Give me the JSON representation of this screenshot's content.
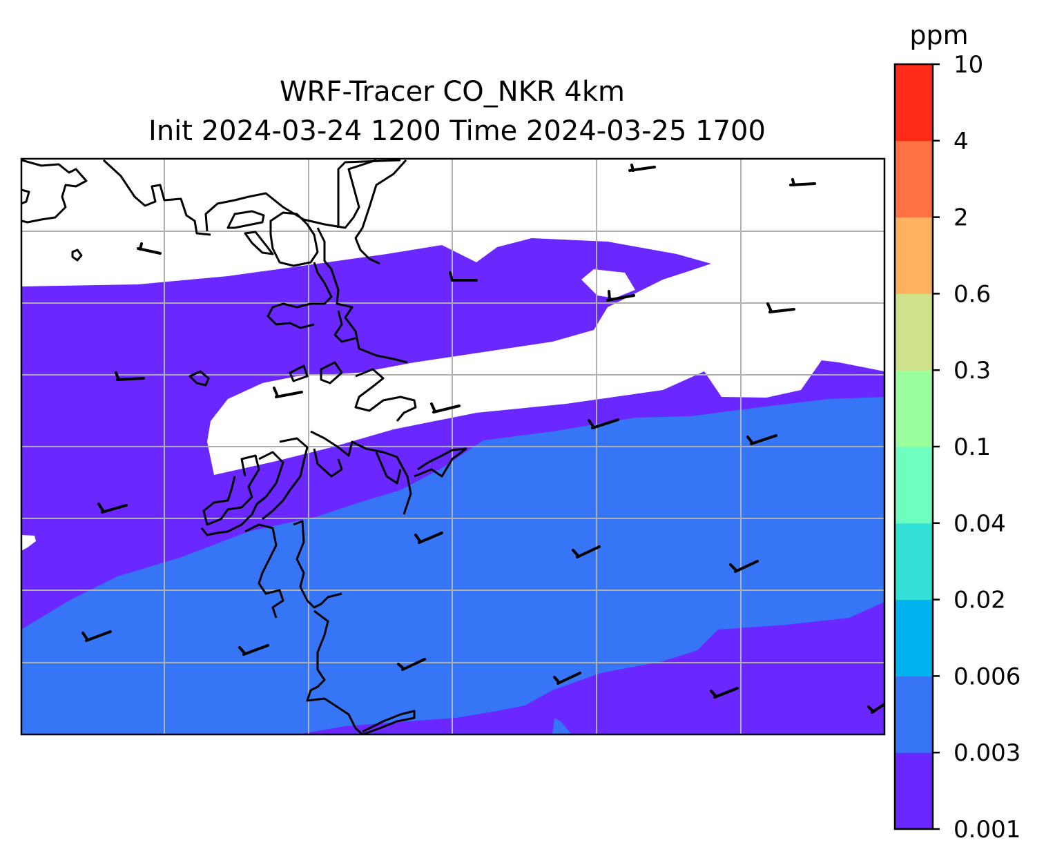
{
  "title": {
    "line1": "WRF-Tracer CO_NKR 4km",
    "line2": "Init 2024-03-24 1200 Time 2024-03-25 1700"
  },
  "colorbar": {
    "unit": "ppm",
    "levels": [
      "0.001",
      "0.003",
      "0.006",
      "0.02",
      "0.04",
      "0.1",
      "0.3",
      "0.6",
      "2",
      "4",
      "10"
    ],
    "colors": [
      "#6a27ff",
      "#3675f5",
      "#00b2ee",
      "#33e0d6",
      "#6cffc0",
      "#9cff9e",
      "#cfe18a",
      "#ffb160",
      "#ff7241",
      "#ff2a17"
    ]
  },
  "map": {
    "grid_lines": "on",
    "wind_barbs": "on",
    "coastlines": "on",
    "field_colors": {
      "background": "#ffffff",
      "band_0_001_0_003": "#6a27ff",
      "band_0_003_0_006": "#3675f5"
    }
  }
}
